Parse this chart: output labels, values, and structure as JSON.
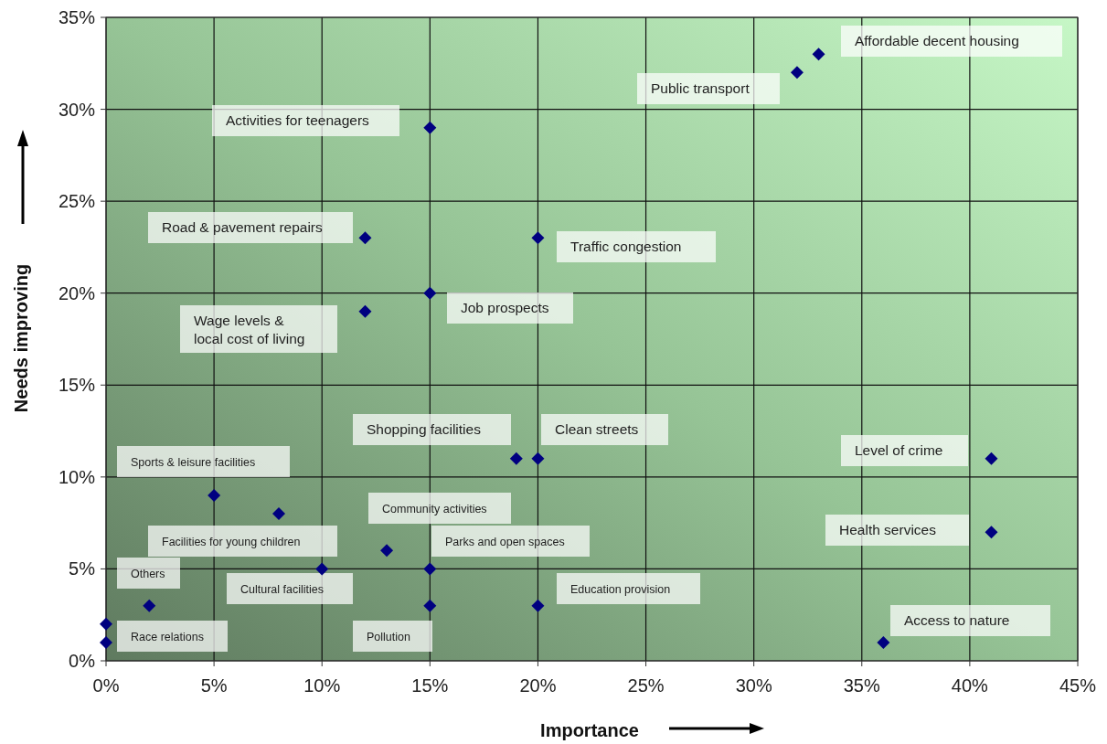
{
  "chart_data": {
    "type": "scatter",
    "xlabel": "Importance",
    "ylabel": "Needs improving",
    "x": [
      33,
      32,
      15,
      12,
      20,
      15,
      12,
      19,
      20,
      41,
      5,
      8,
      41,
      13,
      10,
      15,
      2,
      15,
      20,
      36,
      0,
      0
    ],
    "values": [
      33,
      32,
      29,
      23,
      23,
      20,
      19,
      11,
      11,
      11,
      9,
      8,
      7,
      6,
      5,
      5,
      3,
      3,
      3,
      1,
      1,
      2
    ],
    "color": "#000080",
    "marker": "diamond",
    "grid": true,
    "xlim": [
      0,
      45
    ],
    "ylim": [
      0,
      35
    ],
    "xticks": [
      {
        "value": 0,
        "label": "0%"
      },
      {
        "value": 5,
        "label": "5%"
      },
      {
        "value": 10,
        "label": "10%"
      },
      {
        "value": 15,
        "label": "15%"
      },
      {
        "value": 20,
        "label": "20%"
      },
      {
        "value": 25,
        "label": "25%"
      },
      {
        "value": 30,
        "label": "30%"
      },
      {
        "value": 35,
        "label": "35%"
      },
      {
        "value": 40,
        "label": "40%"
      },
      {
        "value": 45,
        "label": "45%"
      }
    ],
    "yticks": [
      {
        "value": 0,
        "label": "0%"
      },
      {
        "value": 5,
        "label": "5%"
      },
      {
        "value": 10,
        "label": "10%"
      },
      {
        "value": 15,
        "label": "15%"
      },
      {
        "value": 20,
        "label": "20%"
      },
      {
        "value": 25,
        "label": "25%"
      },
      {
        "value": 30,
        "label": "30%"
      },
      {
        "value": 35,
        "label": "35%"
      }
    ],
    "annotations": [
      "Affordable decent housing",
      "Public transport",
      "Activities for teenagers",
      "Road & pavement repairs",
      "Traffic congestion",
      "Job prospects",
      "Wage levels &\nlocal cost of living",
      "Shopping facilities",
      "Clean streets",
      "Level of crime",
      "Sports & leisure facilities",
      "Facilities for young children",
      "Health services",
      "Community activities",
      "Cultural facilities",
      "Parks and open spaces",
      "Others",
      "Pollution",
      "Education provision",
      "Access to nature",
      "Race relations"
    ]
  }
}
